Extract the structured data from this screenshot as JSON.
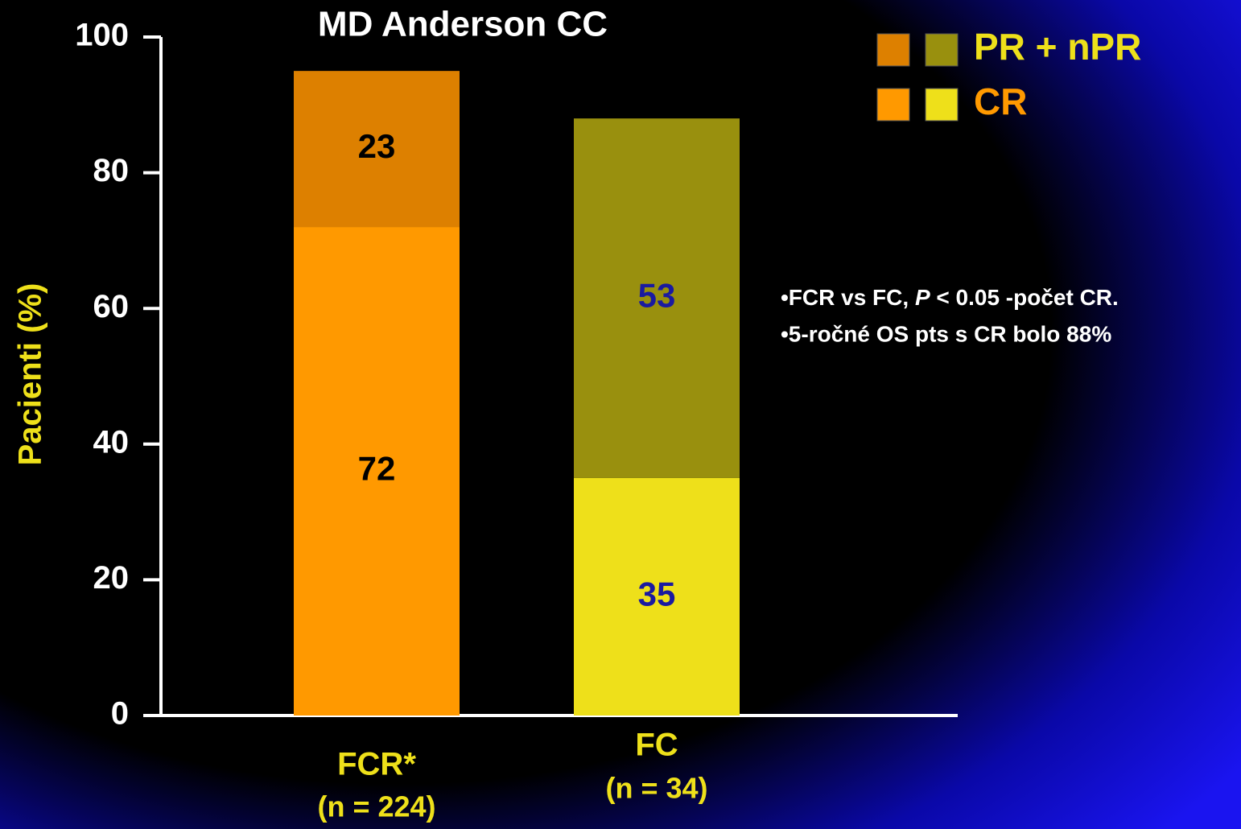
{
  "chart_data": {
    "type": "stacked_bar",
    "title": "MD Anderson CC",
    "y_label": "Pacienti (%)",
    "categories": [
      "FCR*",
      "FC"
    ],
    "category_notes": [
      "(n = 224)",
      "(n = 34)"
    ],
    "series": [
      {
        "name": "CR",
        "colors": [
          "#ff9900",
          "#eee01a"
        ],
        "name_color": "#ff9900",
        "label_colors": [
          "#000000",
          "#1a1aa0"
        ],
        "values": [
          72,
          35
        ]
      },
      {
        "name": "PR + nPR",
        "colors": [
          "#dd8000",
          "#99900e"
        ],
        "name_color": "#eee01a",
        "label_colors": [
          "#000000",
          "#1a1aa0"
        ],
        "values": [
          23,
          53
        ]
      }
    ],
    "ylim": [
      0,
      100
    ],
    "yticks": [
      0,
      20,
      40,
      60,
      80,
      100
    ],
    "annotations": [
      [
        "•FCR vs FC, ",
        "P",
        " < 0.05  -počet CR."
      ],
      [
        "•5-ročné OS pts s CR bolo 88%"
      ]
    ]
  }
}
